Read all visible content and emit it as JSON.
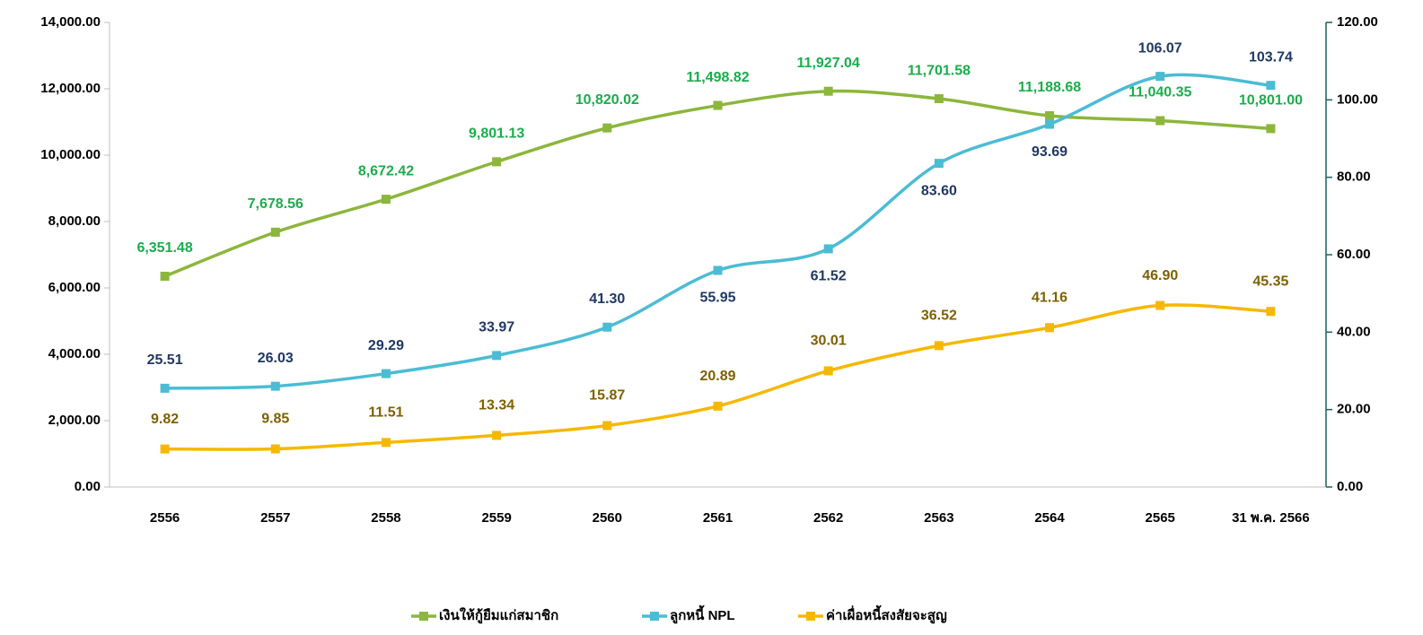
{
  "chart_data": {
    "type": "line",
    "categories": [
      "2556",
      "2557",
      "2558",
      "2559",
      "2560",
      "2561",
      "2562",
      "2563",
      "2564",
      "2565",
      "31 พ.ค. 2566"
    ],
    "series": [
      {
        "name": "เงินให้กู้ยืมแก่สมาชิก",
        "color": "#8cb63c",
        "label_color": "#1aad4b",
        "values": [
          6351.48,
          7678.56,
          8672.42,
          9801.13,
          10820.02,
          11498.82,
          11927.04,
          11701.58,
          11188.68,
          11040.35,
          10801.0
        ],
        "value_labels": [
          "6,351.48",
          "7,678.56",
          "8,672.42",
          "9,801.13",
          "10,820.02",
          "11,498.82",
          "11,927.04",
          "11,701.58",
          "11,188.68",
          "11,040.35",
          "10,801.00"
        ]
      },
      {
        "name": "ลูกหนี้ NPL",
        "color": "#4bbcd4",
        "label_color": "#1f3864",
        "axis": "y2",
        "values": [
          25.51,
          26.03,
          29.29,
          33.97,
          41.3,
          55.95,
          61.52,
          83.6,
          93.69,
          106.07,
          103.74
        ],
        "value_labels": [
          "25.51",
          "26.03",
          "29.29",
          "33.97",
          "41.30",
          "55.95",
          "61.52",
          "83.60",
          "93.69",
          "106.07",
          "103.74"
        ]
      },
      {
        "name": "ค่าเผื่อหนี้สงสัยจะสูญ",
        "color": "#f5b800",
        "label_color": "#7f6000",
        "axis": "y2",
        "values": [
          9.82,
          9.85,
          11.51,
          13.34,
          15.87,
          20.89,
          30.01,
          36.52,
          41.16,
          46.9,
          45.35
        ],
        "value_labels": [
          "9.82",
          "9.85",
          "11.51",
          "13.34",
          "15.87",
          "20.89",
          "30.01",
          "36.52",
          "41.16",
          "46.90",
          "45.35"
        ]
      }
    ],
    "ylim": [
      0,
      14000
    ],
    "yticks": [
      {
        "value": 0,
        "label": "0.00"
      },
      {
        "value": 2000,
        "label": "2,000.00"
      },
      {
        "value": 4000,
        "label": "4,000.00"
      },
      {
        "value": 6000,
        "label": "6,000.00"
      },
      {
        "value": 8000,
        "label": "8,000.00"
      },
      {
        "value": 10000,
        "label": "10,000.00"
      },
      {
        "value": 12000,
        "label": "12,000.00"
      },
      {
        "value": 14000,
        "label": "14,000.00"
      }
    ],
    "y2lim": [
      0,
      120
    ],
    "y2ticks": [
      {
        "value": 0,
        "label": "0.00"
      },
      {
        "value": 20,
        "label": "20.00"
      },
      {
        "value": 40,
        "label": "40.00"
      },
      {
        "value": 60,
        "label": "60.00"
      },
      {
        "value": 80,
        "label": "80.00"
      },
      {
        "value": 100,
        "label": "100.00"
      },
      {
        "value": 120,
        "label": "120.00"
      }
    ],
    "legend": "bottom",
    "grid": false
  }
}
